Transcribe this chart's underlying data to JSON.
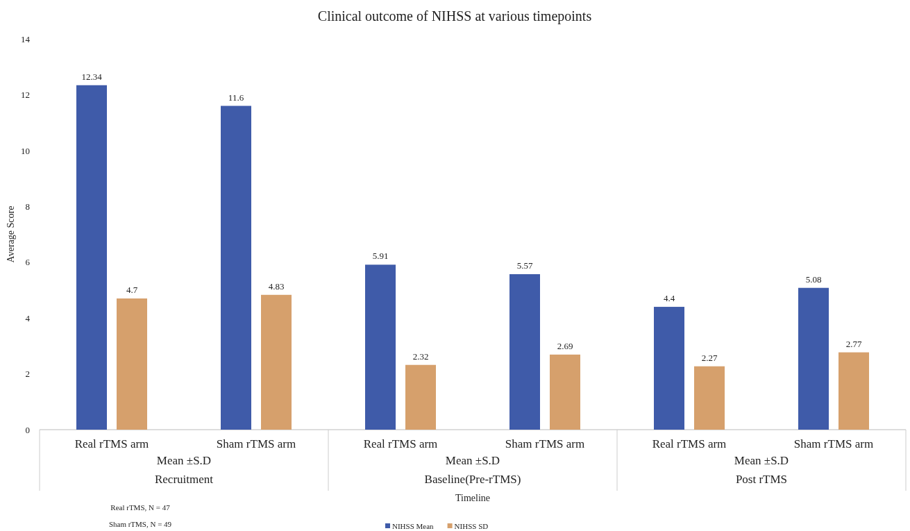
{
  "chart_data": {
    "type": "bar",
    "title": "Clinical outcome of NIHSS at various timepoints",
    "xlabel": "Timeline",
    "ylabel": "Average Score",
    "categories": [
      "Real rTMS arm",
      "Sham rTMS arm",
      "Real rTMS arm",
      "Sham rTMS arm",
      "Real rTMS arm",
      "Sham rTMS arm"
    ],
    "series": [
      {
        "name": "NIHSS Mean",
        "color": "#3f5ba9",
        "values": [
          12.34,
          11.6,
          5.91,
          5.57,
          4.4,
          5.08
        ]
      },
      {
        "name": "NIHSS SD",
        "color": "#d6a06c",
        "values": [
          4.7,
          4.83,
          2.32,
          2.69,
          2.27,
          2.77
        ]
      }
    ],
    "ylim": [
      0,
      14
    ],
    "yticks": [
      0,
      2,
      4,
      6,
      8,
      10,
      12,
      14
    ],
    "data_labels": true,
    "legend": "bottom",
    "annotations": [
      "Mean ±S.D",
      "Recruitment",
      "Mean ±S.D",
      "Baseline(Pre-rTMS)",
      "Mean ±S.D",
      "Post rTMS",
      "Real rTMS, N = 47",
      "Sham  rTMS, N = 49"
    ]
  }
}
